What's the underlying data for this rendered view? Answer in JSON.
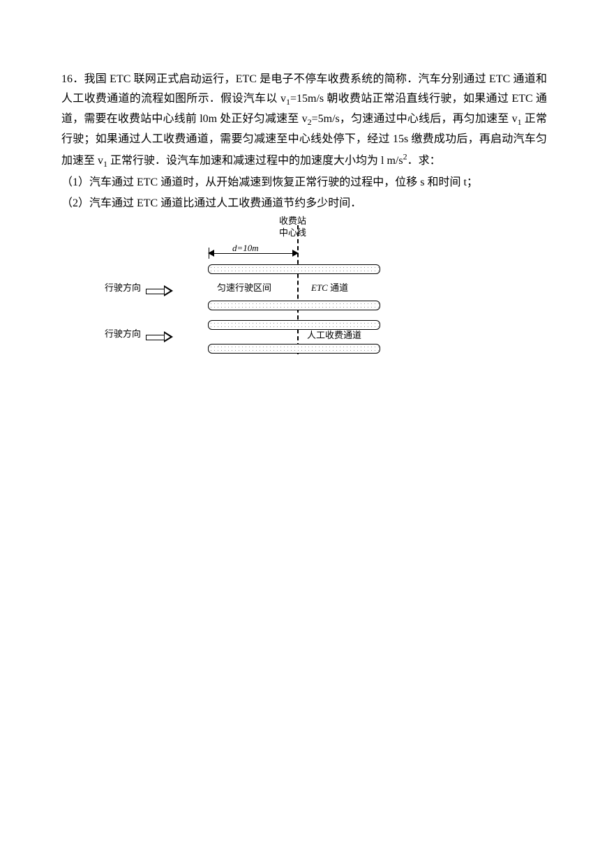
{
  "question_number": "16．",
  "problem_text": "我国 ETC 联网正式启动运行，ETC 是电子不停车收费系统的简称．汽车分别通过 ETC 通道和人工收费通道的流程如图所示．假设汽车以 v₁=15m/s 朝收费站正常沿直线行驶，如果通过 ETC 通道，需要在收费站中心线前 10m 处正好匀减速至 v₂=5m/s，匀速通过中心线后，再匀加速至 v₁ 正常行驶；如果通过人工收费通道，需要匀减速至中心线处停下，经过 15s 缴费成功后，再启动汽车匀加速至 v₁ 正常行驶．设汽车加速和减速过程中的加速度大小均为 1 m/s²．求：",
  "sub1": "（1）汽车通过 ETC 通道时，从开始减速到恢复正常行驶的过程中，位移 s 和时间 t；",
  "sub2": "（2）汽车通过 ETC 通道比通过人工收费通道节约多少时间．",
  "fig": {
    "toll_line1": "收费站",
    "toll_line2": "中心线",
    "d_label": "d=10m",
    "dir_label": "行驶方向",
    "uniform_zone": "匀速行驶区间",
    "etc_lane": "ETC 通道",
    "manual_lane": "人工收费通道"
  }
}
